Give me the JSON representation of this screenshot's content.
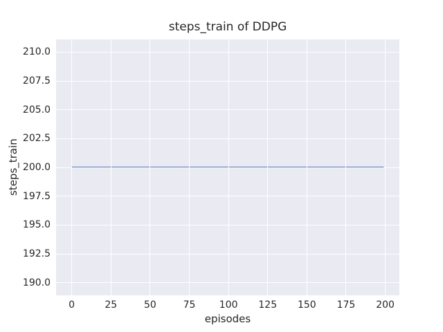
{
  "figure": {
    "background": "#ffffff"
  },
  "chart_data": {
    "type": "line",
    "title": "steps_train of DDPG",
    "xlabel": "episodes",
    "ylabel": "steps_train",
    "xlim": [
      -10,
      209
    ],
    "ylim": [
      188.9,
      211.1
    ],
    "xticks": [
      0,
      25,
      50,
      75,
      100,
      125,
      150,
      175,
      200
    ],
    "xtick_labels": [
      "0",
      "25",
      "50",
      "75",
      "100",
      "125",
      "150",
      "175",
      "200"
    ],
    "yticks": [
      190.0,
      192.5,
      195.0,
      197.5,
      200.0,
      202.5,
      205.0,
      207.5,
      210.0
    ],
    "ytick_labels": [
      "190.0",
      "192.5",
      "195.0",
      "197.5",
      "200.0",
      "202.5",
      "205.0",
      "207.5",
      "210.0"
    ],
    "grid": true,
    "legend": false,
    "series": [
      {
        "name": "steps_train",
        "x": [
          0,
          199
        ],
        "y": [
          200,
          200
        ],
        "note": "constant value 200 across all episodes 0-199"
      }
    ],
    "style": {
      "axes_background": "#eaeaf2",
      "grid_color": "#ffffff",
      "line_color": "#4c72b0",
      "line_width": 2,
      "text_color": "#262626"
    }
  }
}
